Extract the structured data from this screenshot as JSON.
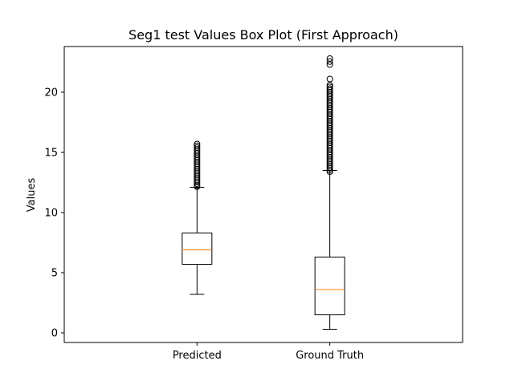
{
  "chart_data": {
    "type": "box",
    "title": "Seg1 test Values Box Plot (First Approach)",
    "xlabel": "",
    "ylabel": "Values",
    "categories": [
      "Predicted",
      "Ground Truth"
    ],
    "ylim": [
      -0.8,
      23.8
    ],
    "yticks": [
      0,
      5,
      10,
      15,
      20
    ],
    "ytick_labels": [
      "0",
      "5",
      "10",
      "15",
      "20"
    ],
    "grid": false,
    "box_color": "#000000",
    "median_color": "#ff7f0e",
    "boxes": [
      {
        "category": "Predicted",
        "whisker_low": 3.2,
        "q1": 5.7,
        "median": 6.9,
        "q3": 8.3,
        "whisker_high": 12.1,
        "outliers": [
          12.15,
          12.25,
          12.4,
          12.55,
          12.7,
          12.85,
          13.0,
          13.15,
          13.3,
          13.45,
          13.6,
          13.75,
          13.9,
          14.05,
          14.2,
          14.35,
          14.5,
          14.65,
          14.8,
          14.95,
          15.1,
          15.25,
          15.4,
          15.55,
          15.7
        ]
      },
      {
        "category": "Ground Truth",
        "whisker_low": 0.3,
        "q1": 1.5,
        "median": 3.6,
        "q3": 6.3,
        "whisker_high": 13.5,
        "outliers": [
          13.4,
          13.55,
          13.7,
          13.85,
          14.0,
          14.15,
          14.3,
          14.45,
          14.6,
          14.75,
          14.9,
          15.05,
          15.2,
          15.35,
          15.5,
          15.65,
          15.8,
          15.95,
          16.1,
          16.25,
          16.4,
          16.55,
          16.7,
          16.85,
          17.0,
          17.15,
          17.3,
          17.45,
          17.6,
          17.75,
          17.9,
          18.05,
          18.2,
          18.35,
          18.5,
          18.65,
          18.8,
          18.95,
          19.1,
          19.25,
          19.4,
          19.55,
          19.7,
          19.85,
          20.0,
          20.15,
          20.3,
          20.45,
          20.6,
          21.1,
          22.3,
          22.55,
          22.8
        ]
      }
    ]
  }
}
